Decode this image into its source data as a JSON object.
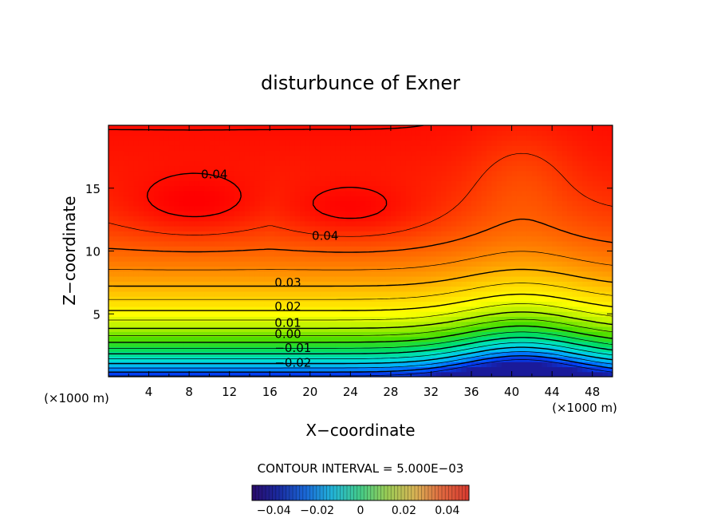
{
  "chart_data": {
    "type": "heatmap",
    "title": "disturbunce of Exner",
    "xlabel": "X−coordinate",
    "ylabel": "Z−coordinate",
    "x_unit_left": "(×1000 m)",
    "x_unit_right": "(×1000 m)",
    "xlim": [
      0,
      50
    ],
    "ylim": [
      0,
      20
    ],
    "x_ticks": [
      4,
      8,
      12,
      16,
      20,
      24,
      28,
      32,
      36,
      40,
      44,
      48
    ],
    "y_ticks": [
      5,
      10,
      15
    ],
    "contour_interval_label": "CONTOUR INTERVAL = 5.000E−03",
    "contour_interval": 0.005,
    "contour_labels": [
      {
        "text": "0.04",
        "x": 10.5,
        "y": 16.1
      },
      {
        "text": "0.04",
        "x": 21.5,
        "y": 11.2
      },
      {
        "text": "0.03",
        "x": 17.8,
        "y": 7.5
      },
      {
        "text": "0.02",
        "x": 17.8,
        "y": 5.6
      },
      {
        "text": "0.01",
        "x": 17.8,
        "y": 4.3
      },
      {
        "text": "0.00",
        "x": 17.8,
        "y": 3.4
      },
      {
        "text": "−0.01",
        "x": 18.3,
        "y": 2.3
      },
      {
        "text": "−0.02",
        "x": 18.3,
        "y": 1.1
      }
    ],
    "colorbar": {
      "range": [
        -0.05,
        0.05
      ],
      "tick_values": [
        -0.04,
        -0.02,
        0,
        0.02,
        0.04
      ],
      "tick_labels": [
        "−0.04",
        "−0.02",
        "0",
        "0.02",
        "0.04"
      ]
    },
    "grid": false,
    "colormap": [
      "#1a1a9a",
      "#0044ff",
      "#00aaff",
      "#00e0d0",
      "#00dd66",
      "#44dd00",
      "#aaee00",
      "#ffff00",
      "#ffcc00",
      "#ff8800",
      "#ff4400",
      "#ff0000",
      "#ff3333"
    ]
  }
}
